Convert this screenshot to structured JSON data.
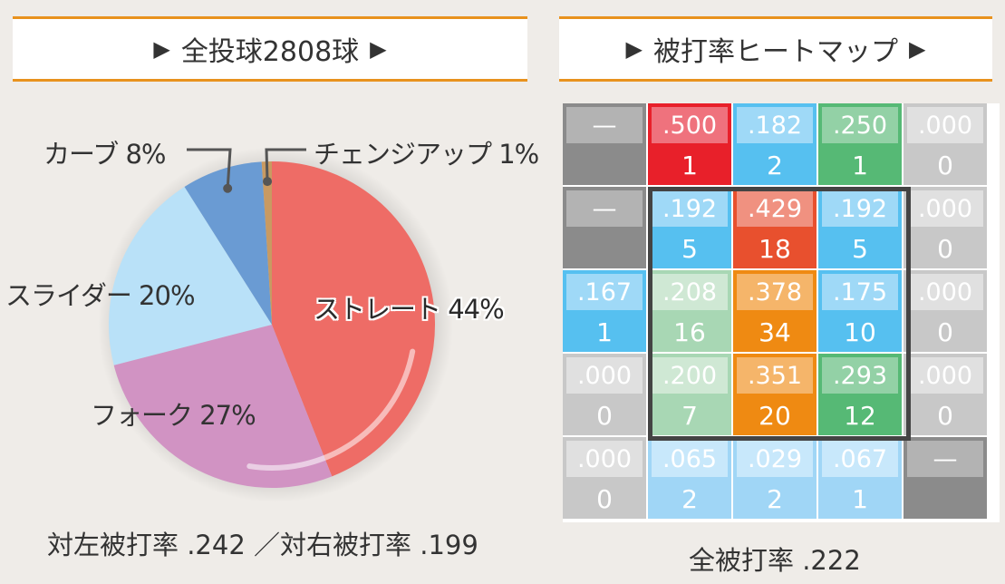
{
  "left_header": {
    "prefix": "▶",
    "title": "全投球2808球",
    "suffix": "▶"
  },
  "right_header": {
    "prefix": "▶",
    "title": "被打率ヒートマップ",
    "suffix": "▶"
  },
  "chart_data": [
    {
      "type": "pie",
      "title": "全投球2808球",
      "total_pitches": 2808,
      "slices": [
        {
          "label": "ストレート 44%",
          "name": "ストレート",
          "value": 44,
          "color": "#ee6c66"
        },
        {
          "label": "フォーク 27%",
          "name": "フォーク",
          "value": 27,
          "color": "#d193c3"
        },
        {
          "label": "スライダー 20%",
          "name": "スライダー",
          "value": 20,
          "color": "#b9e1f8"
        },
        {
          "label": "カーブ 8%",
          "name": "カーブ",
          "value": 8,
          "color": "#6a9bd3"
        },
        {
          "label": "チェンジアップ 1%",
          "name": "チェンジアップ",
          "value": 1,
          "color": "#c89a62"
        }
      ]
    },
    {
      "type": "heatmap",
      "title": "被打率ヒートマップ",
      "rows": 5,
      "cols": 5,
      "cells": [
        [
          {
            "avg": "—",
            "count": ""
          },
          {
            "avg": ".500",
            "count": "1"
          },
          {
            "avg": ".182",
            "count": "2"
          },
          {
            "avg": ".250",
            "count": "1"
          },
          {
            "avg": ".000",
            "count": "0"
          }
        ],
        [
          {
            "avg": "—",
            "count": ""
          },
          {
            "avg": ".192",
            "count": "5"
          },
          {
            "avg": ".429",
            "count": "18"
          },
          {
            "avg": ".192",
            "count": "5"
          },
          {
            "avg": ".000",
            "count": "0"
          }
        ],
        [
          {
            "avg": ".167",
            "count": "1"
          },
          {
            "avg": ".208",
            "count": "16"
          },
          {
            "avg": ".378",
            "count": "34"
          },
          {
            "avg": ".175",
            "count": "10"
          },
          {
            "avg": ".000",
            "count": "0"
          }
        ],
        [
          {
            "avg": ".000",
            "count": "0"
          },
          {
            "avg": ".200",
            "count": "7"
          },
          {
            "avg": ".351",
            "count": "20"
          },
          {
            "avg": ".293",
            "count": "12"
          },
          {
            "avg": ".000",
            "count": "0"
          }
        ],
        [
          {
            "avg": ".000",
            "count": "0"
          },
          {
            "avg": ".065",
            "count": "2"
          },
          {
            "avg": ".029",
            "count": "2"
          },
          {
            "avg": ".067",
            "count": "1"
          },
          {
            "avg": "—",
            "count": ""
          }
        ]
      ],
      "cell_colors": [
        [
          {
            "top": "#b3b3b3",
            "bottom": "#8b8b8b"
          },
          {
            "top": "#ef727d",
            "bottom": "#e8202a"
          },
          {
            "top": "#9fd9f7",
            "bottom": "#56c0f0"
          },
          {
            "top": "#93d1a6",
            "bottom": "#56b975"
          },
          {
            "top": "#e0e0e0",
            "bottom": "#c8c8c8"
          }
        ],
        [
          {
            "top": "#b3b3b3",
            "bottom": "#8b8b8b"
          },
          {
            "top": "#9fd9f7",
            "bottom": "#56c0f0"
          },
          {
            "top": "#f09180",
            "bottom": "#e8502e"
          },
          {
            "top": "#9fd9f7",
            "bottom": "#56c0f0"
          },
          {
            "top": "#e0e0e0",
            "bottom": "#c8c8c8"
          }
        ],
        [
          {
            "top": "#9fd9f7",
            "bottom": "#56c0f0"
          },
          {
            "top": "#cfe8d4",
            "bottom": "#a8d7b4"
          },
          {
            "top": "#f5b56a",
            "bottom": "#ef8a12"
          },
          {
            "top": "#9fd9f7",
            "bottom": "#56c0f0"
          },
          {
            "top": "#e0e0e0",
            "bottom": "#c8c8c8"
          }
        ],
        [
          {
            "top": "#e0e0e0",
            "bottom": "#c8c8c8"
          },
          {
            "top": "#cfe8d4",
            "bottom": "#a8d7b4"
          },
          {
            "top": "#f5b56a",
            "bottom": "#ef8a12"
          },
          {
            "top": "#93d1a6",
            "bottom": "#56b975"
          },
          {
            "top": "#e0e0e0",
            "bottom": "#c8c8c8"
          }
        ],
        [
          {
            "top": "#e0e0e0",
            "bottom": "#c8c8c8"
          },
          {
            "top": "#c8e8fb",
            "bottom": "#a0d6f6"
          },
          {
            "top": "#c8e8fb",
            "bottom": "#a0d6f6"
          },
          {
            "top": "#c8e8fb",
            "bottom": "#a0d6f6"
          },
          {
            "top": "#b3b3b3",
            "bottom": "#8b8b8b"
          }
        ]
      ],
      "strike_zone": {
        "rows": [
          1,
          3
        ],
        "cols": [
          1,
          3
        ],
        "color": "#444444"
      }
    }
  ],
  "left_footer": "対左被打率 .242 ／対右被打率 .199",
  "right_footer": "全被打率 .222"
}
